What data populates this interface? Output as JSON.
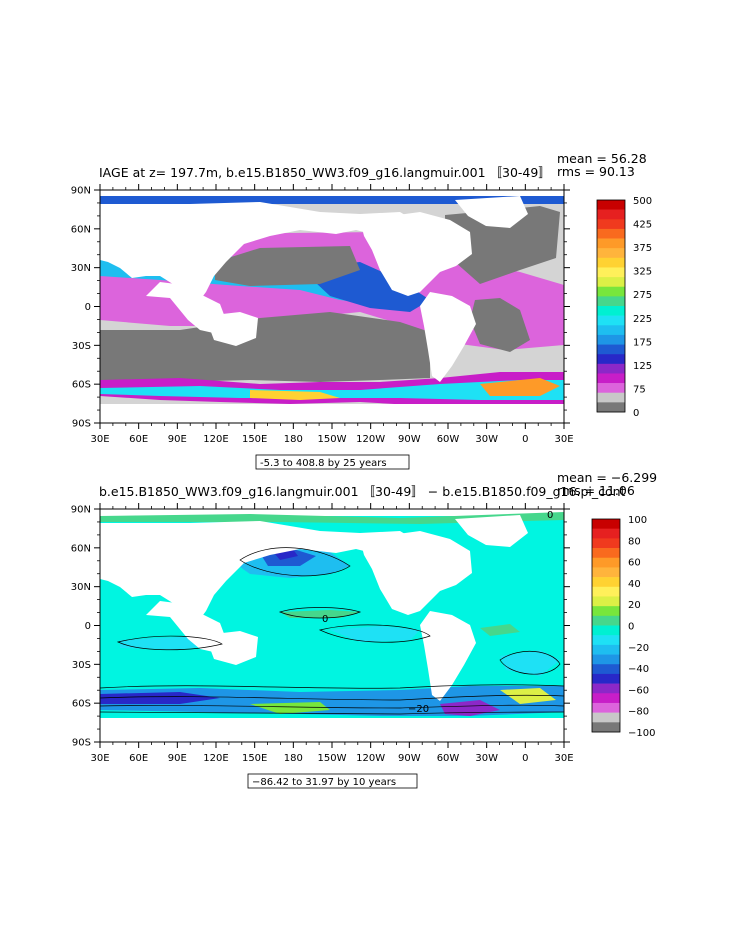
{
  "chart_data": [
    {
      "type": "heatmap",
      "title": "IAGE at z= 197.7m, b.e15.B1850_WW3.f09_g16.langmuir.001 〚30-49〛",
      "mean_label": "mean = 56.28",
      "rms_label": "rms = 90.13",
      "range_label": "-5.3 to 408.8 by 25 years",
      "x_ticks": [
        "30E",
        "60E",
        "90E",
        "120E",
        "150E",
        "180",
        "150W",
        "120W",
        "90W",
        "60W",
        "30W",
        "0",
        "30E"
      ],
      "y_ticks": [
        "90N",
        "60N",
        "30N",
        "0",
        "30S",
        "60S",
        "90S"
      ],
      "colorbar": {
        "labels": [
          "500",
          "425",
          "375",
          "325",
          "275",
          "225",
          "175",
          "125",
          "75",
          "0"
        ],
        "colors": [
          "#c80000",
          "#e62020",
          "#f03a1e",
          "#f96a1e",
          "#fe9a28",
          "#ffb43c",
          "#ffd232",
          "#fff05a",
          "#dcf046",
          "#78e63c",
          "#46d78c",
          "#00f0d2",
          "#1ee1f5",
          "#1ebef0",
          "#1e96e6",
          "#1e5ad2",
          "#2828c8",
          "#8c28c8",
          "#c81ec8",
          "#dc64dc",
          "#c8c8c8",
          "#787878"
        ]
      },
      "ocean_color": "#d4d4d4",
      "land_color": "#ffffff"
    },
    {
      "type": "heatmap",
      "title": "b.e15.B1850_WW3.f09_g16.langmuir.001 〚30-49〛 − b.e15.B1850.f09_g16.pi_cont",
      "mean_label": "mean = −6.299",
      "rms_label": "rms = 11.06",
      "range_label": "−86.42 to 31.97 by 10 years",
      "x_ticks": [
        "30E",
        "60E",
        "90E",
        "120E",
        "150E",
        "180",
        "150W",
        "120W",
        "90W",
        "60W",
        "30W",
        "0",
        "30E"
      ],
      "y_ticks": [
        "90N",
        "60N",
        "30N",
        "0",
        "30S",
        "60S",
        "90S"
      ],
      "colorbar": {
        "labels": [
          "100",
          "80",
          "60",
          "40",
          "20",
          "0",
          "−20",
          "−40",
          "−60",
          "−80",
          "−100"
        ],
        "colors": [
          "#c80000",
          "#e62020",
          "#f03a1e",
          "#f96a1e",
          "#fe9a28",
          "#ffb43c",
          "#ffd232",
          "#fff05a",
          "#dcf046",
          "#78e63c",
          "#46d78c",
          "#00f0d2",
          "#1ee1f5",
          "#1ebef0",
          "#1e96e6",
          "#1e5ad2",
          "#2828c8",
          "#8c28c8",
          "#c81ec8",
          "#dc64dc",
          "#c8c8c8",
          "#787878"
        ]
      },
      "ocean_color": "#00f5e1",
      "land_color": "#ffffff",
      "contour_labels": [
        "0",
        "0",
        "−20"
      ]
    }
  ]
}
